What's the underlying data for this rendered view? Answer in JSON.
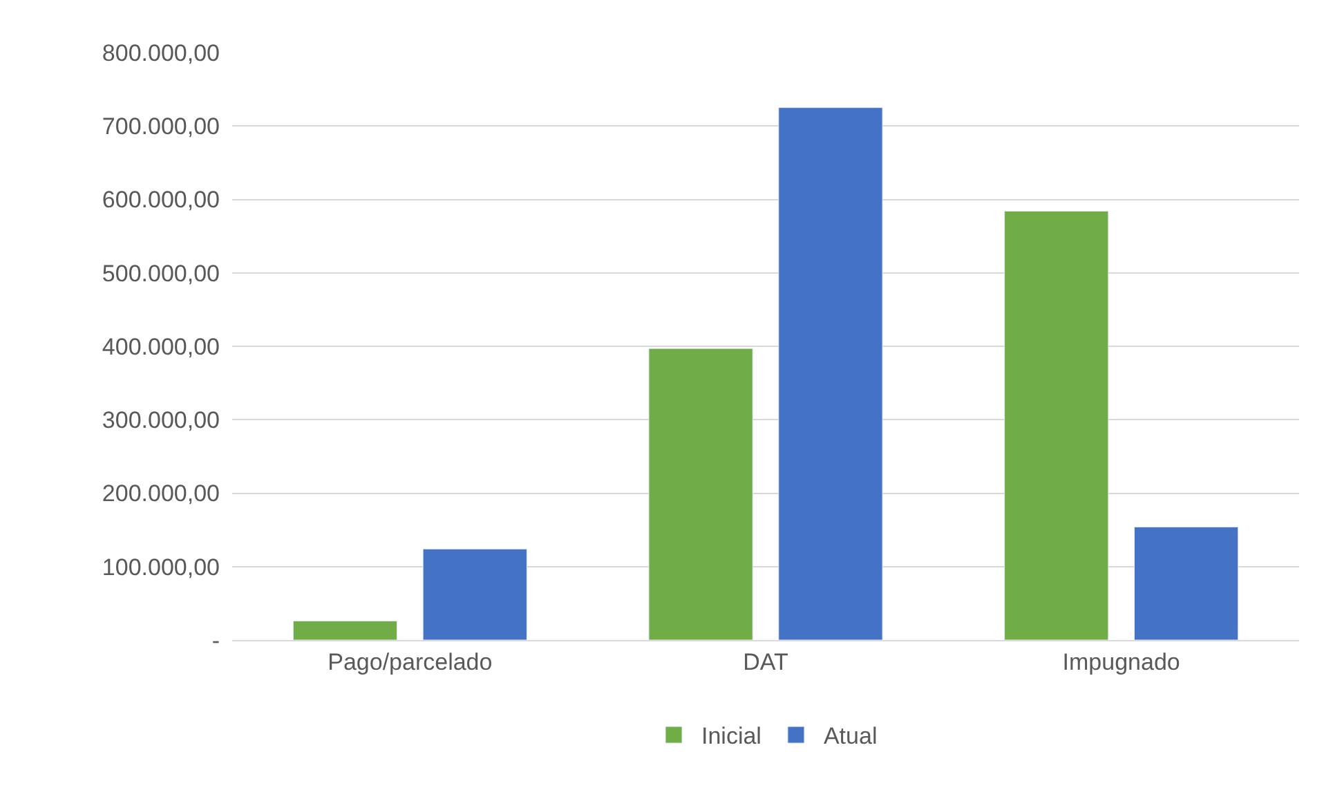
{
  "chart_data": {
    "type": "bar",
    "categories": [
      "Pago/parcelado",
      "DAT",
      "Impugnado"
    ],
    "series": [
      {
        "name": "Inicial",
        "color": "#70ad47",
        "values": [
          26000,
          397000,
          584000
        ]
      },
      {
        "name": "Atual",
        "color": "#4472c4",
        "values": [
          124000,
          725000,
          154000
        ]
      }
    ],
    "ylim": [
      0,
      800000
    ],
    "yticks": [
      {
        "value": 0,
        "label": "-"
      },
      {
        "value": 100000,
        "label": "100.000,00"
      },
      {
        "value": 200000,
        "label": "200.000,00"
      },
      {
        "value": 300000,
        "label": "300.000,00"
      },
      {
        "value": 400000,
        "label": "400.000,00"
      },
      {
        "value": 500000,
        "label": "500.000,00"
      },
      {
        "value": 600000,
        "label": "600.000,00"
      },
      {
        "value": 700000,
        "label": "700.000,00"
      },
      {
        "value": 800000,
        "label": "800.000,00"
      }
    ],
    "grid": "y",
    "legend": "bottom"
  }
}
